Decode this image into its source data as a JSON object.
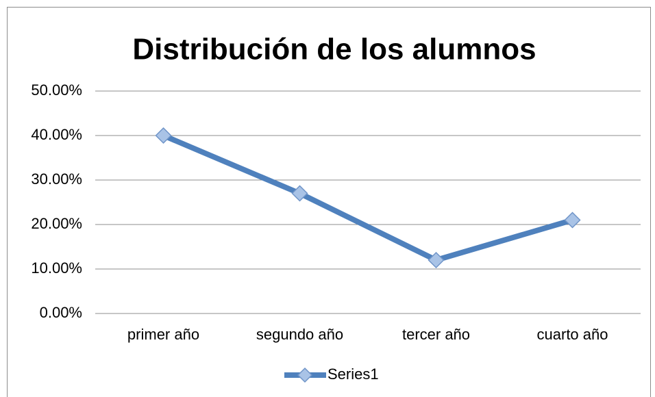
{
  "chart_data": {
    "type": "line",
    "title": "Distribución de los alumnos",
    "categories": [
      "primer año",
      "segundo año",
      "tercer año",
      "cuarto año"
    ],
    "series": [
      {
        "name": "Series1",
        "color": "#4f81bd",
        "values": [
          40,
          27,
          12,
          21
        ]
      }
    ],
    "ylim": [
      0,
      50
    ],
    "yticks": [
      {
        "value": 0,
        "label": "0.00%"
      },
      {
        "value": 10,
        "label": "10.00%"
      },
      {
        "value": 20,
        "label": "20.00%"
      },
      {
        "value": 30,
        "label": "30.00%"
      },
      {
        "value": 40,
        "label": "40.00%"
      },
      {
        "value": 50,
        "label": "50.00%"
      }
    ],
    "grid": true,
    "legend": "bottom"
  }
}
